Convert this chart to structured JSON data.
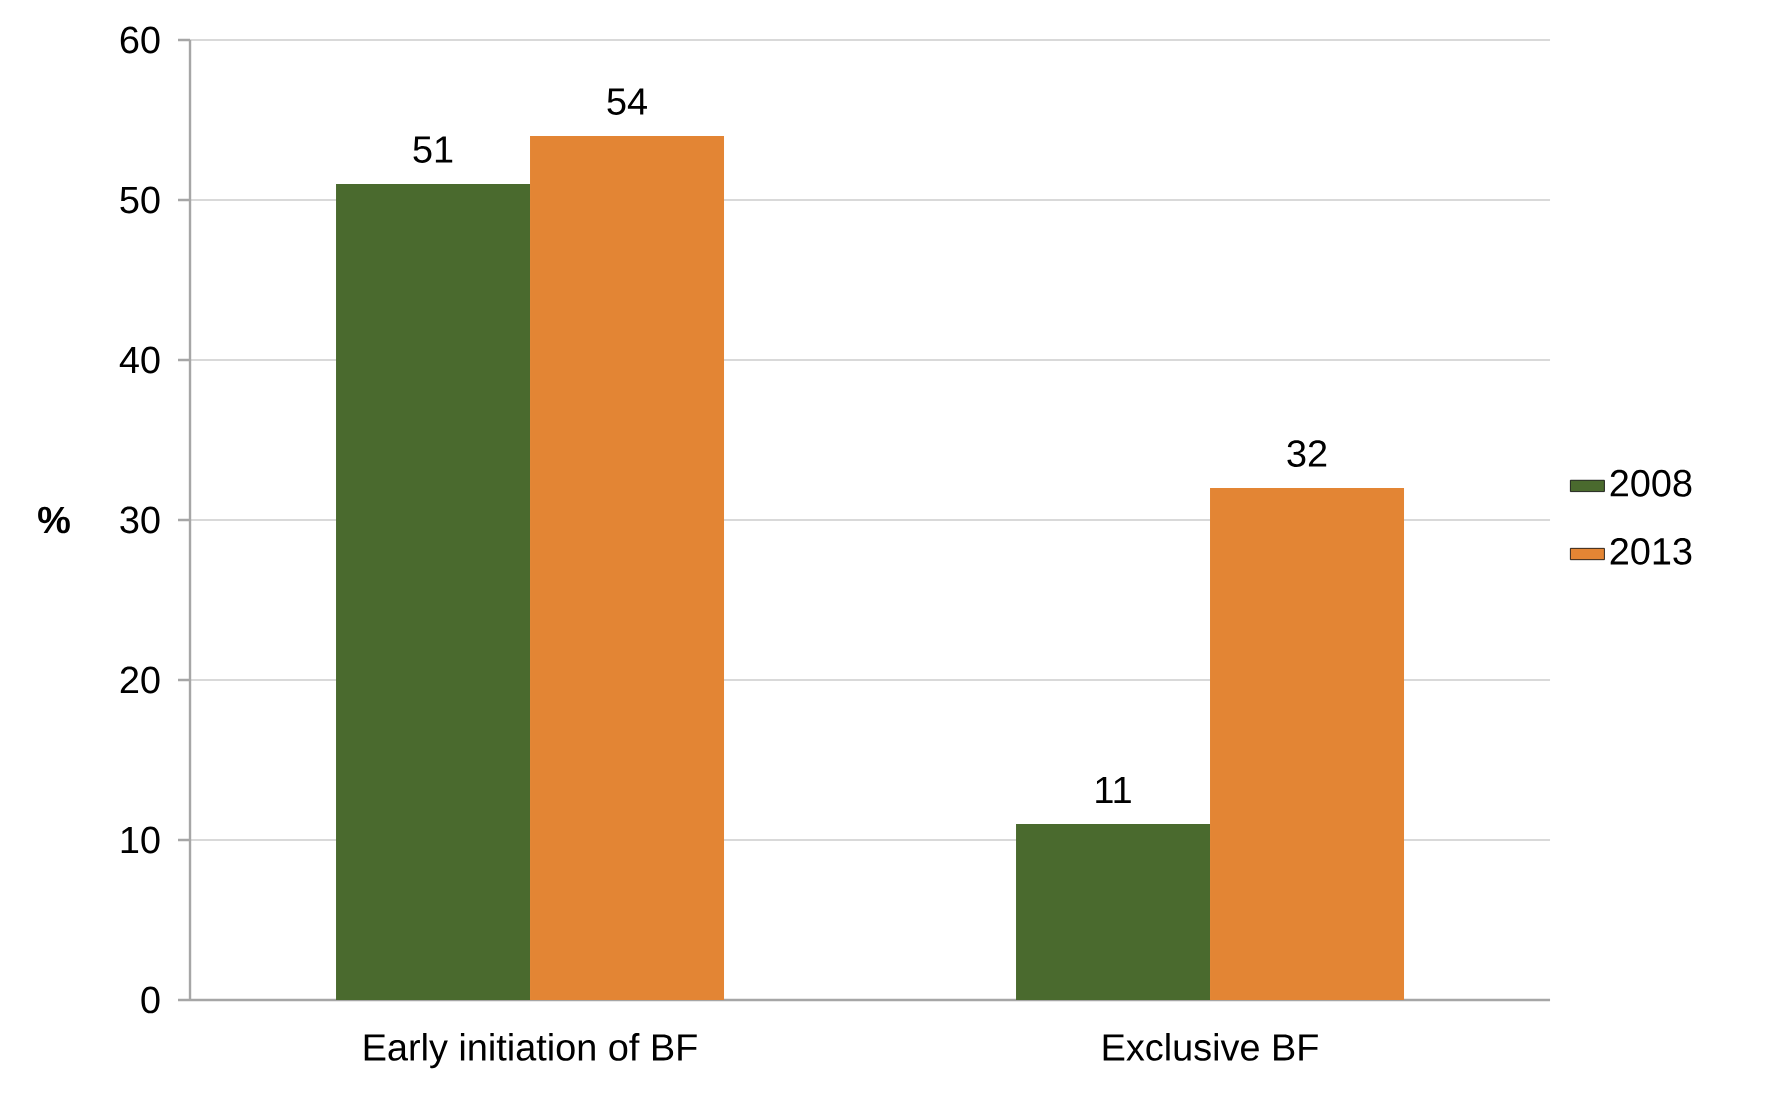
{
  "chart_data": {
    "type": "bar",
    "ylabel": "%",
    "categories": [
      "Early initiation of BF",
      "Exclusive BF"
    ],
    "series": [
      {
        "name": "2008",
        "color": "#4a6a2e",
        "values": [
          51,
          11
        ]
      },
      {
        "name": "2013",
        "color": "#e38534",
        "values": [
          54,
          32
        ]
      }
    ],
    "ylim": [
      0,
      60
    ],
    "yticks": [
      0,
      10,
      20,
      30,
      40,
      50,
      60
    ],
    "grid": "y",
    "legend": "right",
    "data_labels": true
  }
}
